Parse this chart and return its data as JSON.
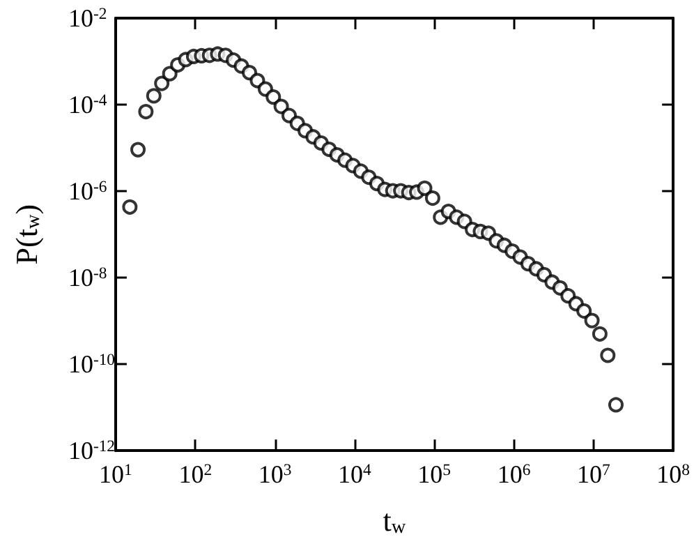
{
  "chart_data": {
    "type": "scatter",
    "xlabel": "t$_{w}$",
    "ylabel": "P(t$_{w}$)",
    "log": "xy",
    "marker": "circle",
    "grid": false,
    "xlim": [
      10,
      100000000
    ],
    "ylim": [
      1e-12,
      0.01
    ],
    "xticks": [
      {
        "value": 10,
        "label": "10$^{1}$"
      },
      {
        "value": 100,
        "label": "10$^{2}$"
      },
      {
        "value": 1000,
        "label": "10$^{3}$"
      },
      {
        "value": 10000,
        "label": "10$^{4}$"
      },
      {
        "value": 100000,
        "label": "10$^{5}$"
      },
      {
        "value": 1000000,
        "label": "10$^{6}$"
      },
      {
        "value": 10000000,
        "label": "10$^{7}$"
      },
      {
        "value": 100000000,
        "label": "10$^{8}$"
      }
    ],
    "yticks": [
      {
        "value": 1e-12,
        "label": "10$^{-12}$"
      },
      {
        "value": 1e-10,
        "label": "10$^{-10}$"
      },
      {
        "value": 1e-08,
        "label": "10$^{-8}$"
      },
      {
        "value": 1e-06,
        "label": "10$^{-6}$"
      },
      {
        "value": 0.0001,
        "label": "10$^{-4}$"
      },
      {
        "value": 0.01,
        "label": "10$^{-2}$"
      }
    ],
    "series": [
      {
        "color": "#000000",
        "x": [
          15.1,
          19.1,
          24.0,
          30.2,
          38.0,
          47.9,
          60.3,
          75.9,
          95.5,
          120.0,
          151.0,
          191.0,
          240.0,
          302.0,
          380.0,
          479.0,
          603.0,
          759.0,
          955.0,
          1200.0,
          1510.0,
          1910.0,
          2400.0,
          3020.0,
          3800.0,
          4790.0,
          6030.0,
          7590.0,
          9550.0,
          12000.0,
          15100.0,
          19100.0,
          24000.0,
          30200.0,
          38000.0,
          47900.0,
          60300.0,
          75900.0,
          95500.0,
          120000.0,
          151000.0,
          191000.0,
          240000.0,
          302000.0,
          380000.0,
          479000.0,
          603000.0,
          759000.0,
          955000.0,
          1200000.0,
          1510000.0,
          1910000.0,
          2400000.0,
          3020000.0,
          3800000.0,
          4790000.0,
          6030000.0,
          7590000.0,
          9550000.0,
          12000000.0,
          15100000.0,
          19100000.0
        ],
        "values": [
          4.3e-07,
          9.1e-06,
          6.9e-05,
          0.00016,
          0.00031,
          0.00052,
          0.00083,
          0.0011,
          0.0013,
          0.00135,
          0.00138,
          0.00148,
          0.00138,
          0.00107,
          0.00078,
          0.00055,
          0.00036,
          0.00023,
          0.00015,
          9.1e-05,
          5.6e-05,
          3.7e-05,
          2.5e-05,
          1.8e-05,
          1.3e-05,
          9.3e-06,
          6.9e-06,
          5.2e-06,
          3.9e-06,
          2.9e-06,
          2.1e-06,
          1.5e-06,
          1.1e-06,
          1.02e-06,
          1.02e-06,
          9.3e-07,
          9.5e-07,
          1.17e-06,
          6.9e-07,
          2.5e-07,
          3.4e-07,
          2.5e-07,
          2e-07,
          1.3e-07,
          1.17e-07,
          1.07e-07,
          7.1e-08,
          5.6e-08,
          4.1e-08,
          3e-08,
          2.1e-08,
          1.6e-08,
          1.17e-08,
          7.9e-09,
          5.8e-09,
          3.8e-09,
          2.5e-09,
          1.7e-09,
          1.02e-09,
          5e-10,
          1.6e-10,
          1.15e-11
        ]
      }
    ]
  }
}
